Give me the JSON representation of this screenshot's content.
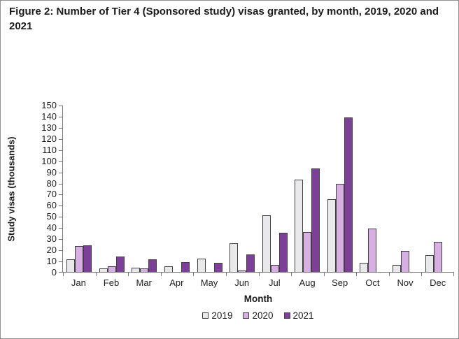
{
  "figure_title": "Figure 2: Number of Tier 4 (Sponsored study) visas granted, by month, 2019, 2020 and 2021",
  "chart_data": {
    "type": "bar",
    "title": "Figure 2: Number of Tier 4 (Sponsored study) visas granted, by month, 2019, 2020 and 2021",
    "xlabel": "Month",
    "ylabel": "Study visas (thousands)",
    "ylim": [
      0,
      150
    ],
    "ytick_step": 10,
    "yticks": [
      0,
      10,
      20,
      30,
      40,
      50,
      60,
      70,
      80,
      90,
      100,
      110,
      120,
      130,
      140,
      150
    ],
    "grid": false,
    "legend_position": "bottom",
    "categories": [
      "Jan",
      "Feb",
      "Mar",
      "Apr",
      "May",
      "Jun",
      "Jul",
      "Aug",
      "Sep",
      "Oct",
      "Nov",
      "Dec"
    ],
    "series": [
      {
        "name": "2019",
        "color": "#e9e9ec",
        "values": [
          11,
          3,
          4,
          5,
          12,
          26,
          51,
          83,
          65,
          8,
          6,
          15
        ]
      },
      {
        "name": "2020",
        "color": "#d8afe3",
        "values": [
          23,
          5,
          3,
          0,
          0,
          1,
          6,
          36,
          79,
          39,
          19,
          27
        ]
      },
      {
        "name": "2021",
        "color": "#7e3f99",
        "values": [
          24,
          14,
          11,
          9,
          8,
          16,
          35,
          93,
          139,
          null,
          null,
          null
        ]
      }
    ],
    "bar_border_color": "#404040",
    "axis_color": "#767676"
  }
}
